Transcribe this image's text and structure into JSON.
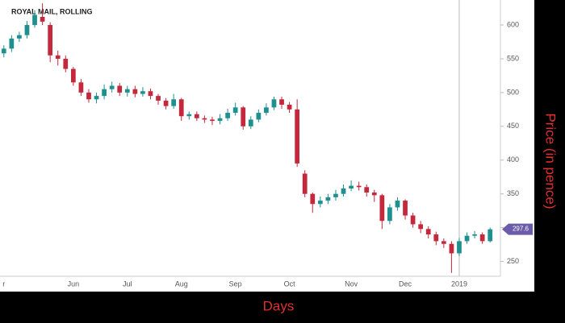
{
  "chart_data": {
    "type": "candlestick",
    "title": "ROYAL MAIL, ROLLING",
    "x_label": "Days",
    "y_label": "Price (in pence)",
    "price_tag": "297.6",
    "categories": [
      "r",
      null,
      null,
      null,
      null,
      null,
      null,
      null,
      null,
      "Jun",
      null,
      null,
      null,
      null,
      null,
      null,
      "Jul",
      null,
      null,
      null,
      null,
      null,
      null,
      "Aug",
      null,
      null,
      null,
      null,
      null,
      null,
      "Sep",
      null,
      null,
      null,
      null,
      null,
      null,
      "Oct",
      null,
      null,
      null,
      null,
      null,
      null,
      null,
      "Nov",
      null,
      null,
      null,
      null,
      null,
      null,
      "Dec",
      null,
      null,
      null,
      null,
      null,
      null,
      "2019",
      null,
      null,
      null,
      null
    ],
    "open": [
      558,
      565,
      580,
      585,
      600,
      612,
      600,
      555,
      550,
      535,
      515,
      500,
      490,
      495,
      505,
      510,
      500,
      505,
      498,
      502,
      495,
      488,
      480,
      490,
      465,
      468,
      462,
      460,
      458,
      462,
      470,
      478,
      450,
      460,
      470,
      478,
      490,
      482,
      475,
      380,
      350,
      335,
      340,
      345,
      350,
      358,
      362,
      360,
      352,
      348,
      310,
      330,
      340,
      318,
      305,
      298,
      290,
      280,
      276,
      262,
      280,
      288,
      290,
      280
    ],
    "high": [
      570,
      585,
      590,
      606,
      622,
      632,
      604,
      562,
      555,
      538,
      520,
      505,
      500,
      512,
      516,
      514,
      510,
      510,
      508,
      506,
      498,
      492,
      498,
      492,
      472,
      472,
      466,
      464,
      468,
      476,
      485,
      480,
      465,
      475,
      484,
      494,
      494,
      486,
      490,
      385,
      352,
      346,
      350,
      356,
      364,
      370,
      368,
      364,
      356,
      350,
      335,
      345,
      342,
      322,
      310,
      302,
      294,
      284,
      280,
      285,
      293,
      295,
      293,
      300
    ],
    "low": [
      552,
      560,
      575,
      580,
      596,
      600,
      545,
      540,
      530,
      510,
      495,
      485,
      484,
      490,
      500,
      495,
      494,
      493,
      494,
      490,
      482,
      475,
      476,
      458,
      460,
      458,
      455,
      452,
      453,
      458,
      466,
      445,
      446,
      456,
      466,
      474,
      476,
      470,
      390,
      345,
      322,
      330,
      335,
      340,
      346,
      354,
      355,
      346,
      338,
      298,
      305,
      325,
      312,
      300,
      292,
      284,
      274,
      270,
      233,
      258,
      276,
      284,
      276,
      278
    ],
    "close": [
      565,
      580,
      585,
      600,
      615,
      605,
      555,
      550,
      535,
      515,
      500,
      490,
      495,
      505,
      510,
      500,
      505,
      498,
      502,
      495,
      488,
      480,
      490,
      465,
      468,
      462,
      460,
      458,
      462,
      470,
      478,
      450,
      460,
      470,
      478,
      490,
      482,
      475,
      395,
      350,
      335,
      340,
      345,
      350,
      358,
      362,
      360,
      352,
      348,
      310,
      330,
      340,
      318,
      305,
      298,
      290,
      280,
      276,
      262,
      280,
      288,
      290,
      280,
      297.6
    ],
    "up_color": "#1f8f8f",
    "down_color": "#c3283c",
    "ylim": [
      228,
      637
    ],
    "yticks": [
      250,
      300,
      350,
      400,
      450,
      500,
      550,
      600
    ],
    "grid": false
  }
}
